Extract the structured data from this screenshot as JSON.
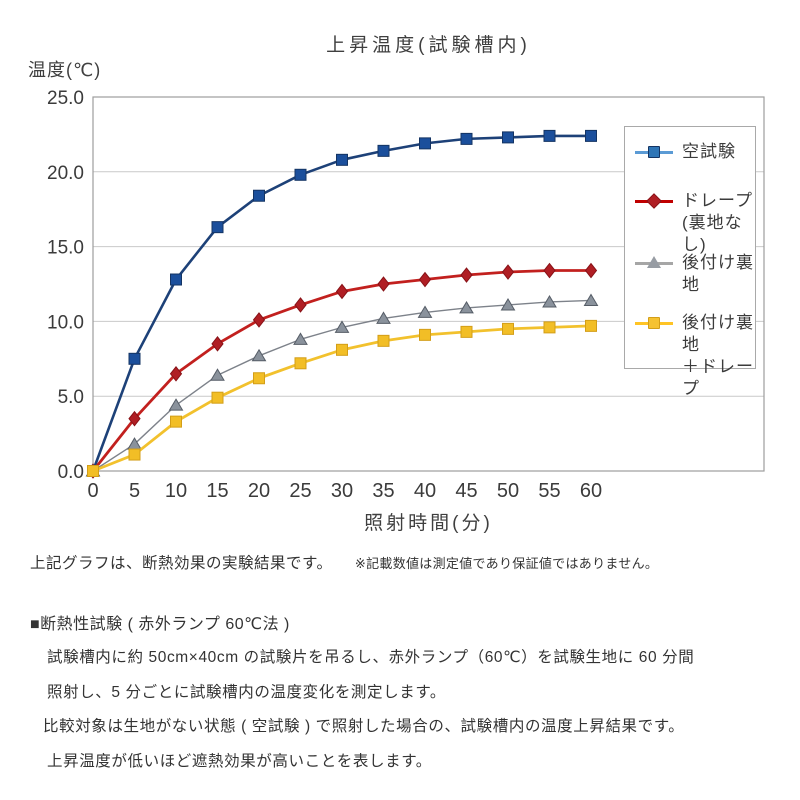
{
  "chart_data": {
    "type": "line",
    "title": "上昇温度(試験槽内)",
    "y_axis_title": "温度(℃)",
    "x_axis_title": "照射時間(分)",
    "xlabel": "照射時間(分)",
    "ylabel": "温度(℃)",
    "x": [
      0,
      5,
      10,
      15,
      20,
      25,
      30,
      35,
      40,
      45,
      50,
      55,
      60
    ],
    "x_tick_labels": [
      "0",
      "5",
      "10",
      "15",
      "20",
      "25",
      "30",
      "35",
      "40",
      "45",
      "50",
      "55",
      "60"
    ],
    "y_ticks": [
      0,
      5,
      10,
      15,
      20,
      25
    ],
    "y_tick_labels": [
      "0.0",
      "5.0",
      "10.0",
      "15.0",
      "20.0",
      "25.0"
    ],
    "ylim": [
      0,
      25
    ],
    "xlim": [
      0,
      60
    ],
    "grid": "horizontal-only",
    "legend_position": "right-inside",
    "series": [
      {
        "name": "空試験",
        "legend_lines": [
          "空試験",
          ""
        ],
        "marker": "square",
        "line_color": "#1d4178",
        "marker_color": "#1b4f9c",
        "marker_border": "#143463",
        "line_width": 2.6,
        "legend_line_color": "#5b9bd5",
        "legend_marker_color": "#2e75b6",
        "values": [
          0.0,
          7.5,
          12.8,
          16.3,
          18.4,
          19.8,
          20.8,
          21.4,
          21.9,
          22.2,
          22.3,
          22.4,
          22.4
        ]
      },
      {
        "name": "ドレープ(裏地なし)",
        "legend_lines": [
          "ドレープ",
          "(裏地なし)"
        ],
        "marker": "diamond",
        "line_color": "#c2201e",
        "marker_color": "#b01e24",
        "marker_border": "#871217",
        "line_width": 2.8,
        "legend_line_color": "#c00000",
        "legend_marker_color": "#b01e24",
        "values": [
          0.0,
          3.5,
          6.5,
          8.5,
          10.1,
          11.1,
          12.0,
          12.5,
          12.8,
          13.1,
          13.3,
          13.4,
          13.4
        ]
      },
      {
        "name": "後付け裏地",
        "legend_lines": [
          "後付け裏地",
          ""
        ],
        "marker": "triangle",
        "line_color": "#7d828a",
        "marker_color": "#8a929c",
        "marker_border": "#555c66",
        "line_width": 1.4,
        "legend_line_color": "#a6a6a6",
        "legend_marker_color": "#979ca3",
        "values": [
          0.0,
          1.8,
          4.4,
          6.4,
          7.7,
          8.8,
          9.6,
          10.2,
          10.6,
          10.9,
          11.1,
          11.3,
          11.4
        ]
      },
      {
        "name": "後付け裏地＋ドレープ",
        "legend_lines": [
          "後付け裏地",
          "＋ドレープ"
        ],
        "marker": "square",
        "line_color": "#f2c12d",
        "marker_color": "#f2bE26",
        "marker_border": "#d39e18",
        "line_width": 2.8,
        "legend_line_color": "#ffc425",
        "legend_marker_color": "#f5c231",
        "values": [
          0.0,
          1.1,
          3.3,
          4.9,
          6.2,
          7.2,
          8.1,
          8.7,
          9.1,
          9.3,
          9.5,
          9.6,
          9.7
        ]
      }
    ],
    "colors": {
      "gridline": "#c9c9c9",
      "plot_border": "#9d9d9d",
      "tick_text": "#3b3b3b"
    }
  },
  "notes": {
    "result_line": "上記グラフは、断熱効果の実験結果です。",
    "disclaimer": "※記載数値は測定値であり保証値ではありません。",
    "section_title": "■断熱性試験 ( 赤外ランプ 60℃法 )",
    "para_1": "試験槽内に約 50cm×40cm の試験片を吊るし、赤外ランプ（60℃）を試験生地に 60 分間",
    "para_2": "照射し、5 分ごとに試験槽内の温度変化を測定します。",
    "para_3": "比較対象は生地がない状態 ( 空試験 ) で照射した場合の、試験槽内の温度上昇結果です。",
    "para_4": "上昇温度が低いほど遮熱効果が高いことを表します。"
  }
}
